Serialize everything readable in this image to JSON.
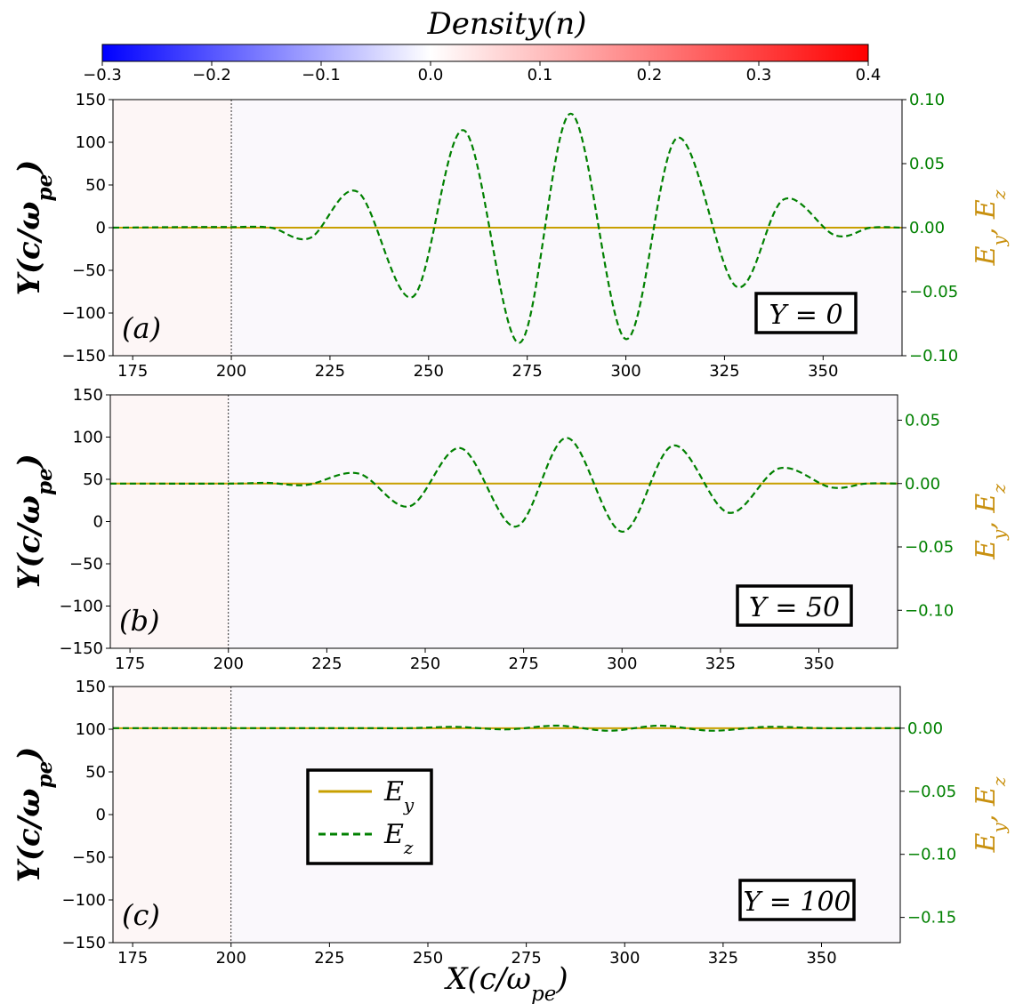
{
  "colorbar": {
    "title": "Density(n)",
    "ticks": [
      "−0.3",
      "−0.2",
      "−0.1",
      "0.0",
      "0.1",
      "0.2",
      "0.3",
      "0.4"
    ],
    "range": [
      -0.3,
      0.4
    ],
    "colors": {
      "low": "#0000ff",
      "mid": "#ffffff",
      "high": "#ff0000"
    }
  },
  "colors": {
    "Ey": "#c8a000",
    "Ez": "#008000",
    "right_axis": "#008000",
    "right_label": "#c8900f",
    "background": "#faf8fc",
    "shade": "#fdf6f6"
  },
  "axes_labels": {
    "x": "X(c/ω",
    "x_sub": "pe",
    "x_close": ")",
    "y": "Y(c/ω",
    "y_sub": "pe",
    "y_close": ")",
    "right": "E",
    "right_y": "y",
    "right_sep": ", E",
    "right_z": "z"
  },
  "legend": {
    "placement": "center-left of panel (c)",
    "items": [
      {
        "name": "E",
        "sub": "y"
      },
      {
        "name": "E",
        "sub": "z"
      }
    ]
  },
  "chart_data": [
    {
      "type": "line",
      "panel_label": "(a)",
      "box_label": "Y = 0",
      "xlim": [
        170,
        370
      ],
      "x_ticks": [
        "175",
        "200",
        "225",
        "250",
        "275",
        "300",
        "325",
        "350"
      ],
      "ylim_left": [
        -150,
        150
      ],
      "left_ticks": [
        "150",
        "100",
        "50",
        "0",
        "−50",
        "−100",
        "−150"
      ],
      "ylim_right": [
        -0.1,
        0.1
      ],
      "right_ticks": [
        "0.10",
        "0.05",
        "0.00",
        "−0.05",
        "−0.10"
      ],
      "Y_offset": 0,
      "series": [
        {
          "name": "Ey",
          "x": [
            170,
            370
          ],
          "y": [
            0,
            0
          ]
        },
        {
          "name": "Ez",
          "x": [
            170,
            190,
            200,
            210,
            220,
            232,
            246,
            259,
            273,
            286,
            300,
            313,
            328,
            340,
            353,
            362,
            370
          ],
          "y": [
            0,
            0.0005,
            0.0005,
            0,
            -0.008,
            0.028,
            -0.054,
            0.076,
            -0.09,
            0.089,
            -0.087,
            0.07,
            -0.046,
            0.022,
            -0.006,
            0,
            0
          ]
        }
      ]
    },
    {
      "type": "line",
      "panel_label": "(b)",
      "box_label": "Y = 50",
      "xlim": [
        170,
        370
      ],
      "x_ticks": [
        "175",
        "200",
        "225",
        "250",
        "275",
        "300",
        "325",
        "350"
      ],
      "ylim_left": [
        -150,
        150
      ],
      "left_ticks": [
        "150",
        "100",
        "50",
        "0",
        "−50",
        "−100",
        "−150"
      ],
      "ylim_right": [
        -0.13,
        0.07
      ],
      "right_ticks": [
        "0.05",
        "0.00",
        "−0.05",
        "−0.10"
      ],
      "Y_offset": 50,
      "series": [
        {
          "name": "Ey",
          "x": [
            170,
            370
          ],
          "y": [
            0,
            0
          ]
        },
        {
          "name": "Ez",
          "x": [
            170,
            200,
            210,
            220,
            233,
            246,
            259,
            273,
            286,
            300,
            313,
            327,
            340,
            353,
            362,
            370
          ],
          "y": [
            0,
            0,
            0.0005,
            -0.001,
            0.008,
            -0.018,
            0.028,
            -0.034,
            0.036,
            -0.038,
            0.03,
            -0.023,
            0.012,
            -0.003,
            0,
            0
          ]
        }
      ]
    },
    {
      "type": "line",
      "panel_label": "(c)",
      "box_label": "Y = 100",
      "xlim": [
        170,
        370
      ],
      "x_ticks": [
        "175",
        "200",
        "225",
        "250",
        "275",
        "300",
        "325",
        "350"
      ],
      "ylim_left": [
        -150,
        150
      ],
      "left_ticks": [
        "150",
        "100",
        "50",
        "0",
        "−50",
        "−100",
        "−150"
      ],
      "ylim_right": [
        -0.17,
        0.033
      ],
      "right_ticks": [
        "0.00",
        "−0.05",
        "−0.10",
        "−0.15"
      ],
      "Y_offset": 100,
      "series": [
        {
          "name": "Ey",
          "x": [
            170,
            370
          ],
          "y": [
            0,
            0
          ]
        },
        {
          "name": "Ez",
          "x": [
            170,
            230,
            245,
            257,
            270,
            283,
            296,
            309,
            322,
            336,
            350,
            362,
            370
          ],
          "y": [
            0,
            0,
            0,
            0.001,
            -0.001,
            0.002,
            -0.002,
            0.002,
            -0.002,
            0.001,
            0,
            0,
            0
          ]
        }
      ]
    }
  ]
}
